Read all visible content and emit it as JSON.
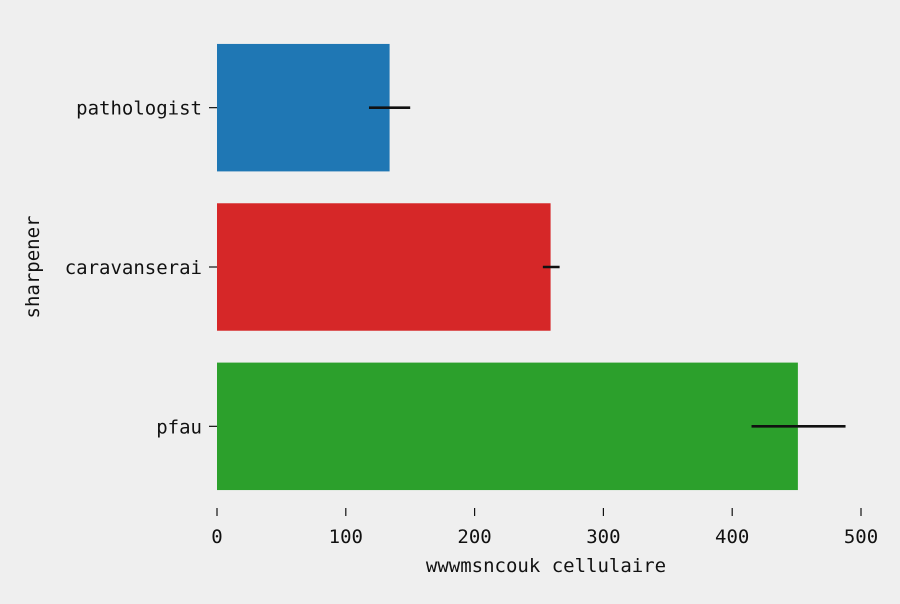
{
  "chart_data": {
    "type": "bar",
    "orientation": "horizontal",
    "categories": [
      "pathologist",
      "caravanserai",
      "pfau"
    ],
    "values": [
      134,
      259,
      451
    ],
    "error": [
      [
        118,
        150
      ],
      [
        253,
        266
      ],
      [
        415,
        488
      ]
    ],
    "colors": [
      "#1f77b4",
      "#d62728",
      "#2ca02c"
    ],
    "xlabel": "wwwmsncouk cellulaire",
    "ylabel": "sharpener",
    "xlim": [
      0,
      500
    ],
    "xticks": [
      0,
      100,
      200,
      300,
      400,
      500
    ],
    "grid": false,
    "background": "#efefef"
  }
}
